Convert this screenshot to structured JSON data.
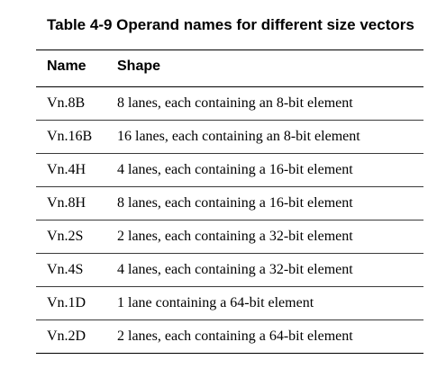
{
  "table": {
    "caption": "Table 4-9 Operand names for different size vectors",
    "headers": {
      "name": "Name",
      "shape": "Shape"
    },
    "rows": [
      {
        "name": "Vn.8B",
        "shape": "8 lanes, each containing an 8-bit element"
      },
      {
        "name": "Vn.16B",
        "shape": "16 lanes, each containing an 8-bit element"
      },
      {
        "name": "Vn.4H",
        "shape": "4 lanes, each containing a 16-bit element"
      },
      {
        "name": "Vn.8H",
        "shape": "8 lanes, each containing a 16-bit element"
      },
      {
        "name": "Vn.2S",
        "shape": "2 lanes, each containing a 32-bit element"
      },
      {
        "name": "Vn.4S",
        "shape": "4 lanes, each containing a 32-bit element"
      },
      {
        "name": "Vn.1D",
        "shape": "1 lane containing a 64-bit element"
      },
      {
        "name": "Vn.2D",
        "shape": "2 lanes, each containing a 64-bit element"
      }
    ]
  }
}
